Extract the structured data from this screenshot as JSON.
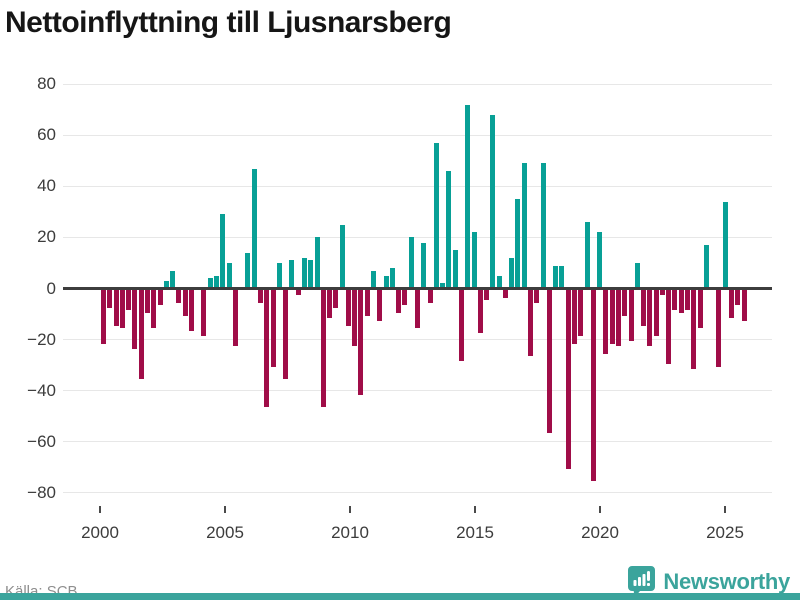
{
  "title": "Nettoinflyttning till Ljusnarsberg",
  "source": "Källa: SCB",
  "brand": "Newsworthy",
  "colors": {
    "positive": "#08a096",
    "negative": "#a00d48",
    "brand_teal": "#3ba49c",
    "grid": "#e7e7e7",
    "zero_axis": "#3d3d3d",
    "axis_text": "#3c3c3c",
    "source_text": "#8e8e8e",
    "title_text": "#161616"
  },
  "chart_data": {
    "type": "bar",
    "title": "Nettoinflyttning till Ljusnarsberg",
    "frequency": "quarterly",
    "start_quarter": "2000 Q1",
    "end_quarter": "2025 Q3",
    "ylim": [
      -80,
      80
    ],
    "grid": "horizontal",
    "y_ticks": [
      80,
      60,
      40,
      20,
      0,
      -20,
      -40,
      -60,
      -80
    ],
    "x_tick_years": [
      2000,
      2005,
      2010,
      2015,
      2020,
      2025
    ],
    "values": [
      -21,
      -7,
      -14,
      -15,
      -8,
      -23,
      -35,
      -9,
      -15,
      -6,
      3,
      7,
      -5,
      -10,
      -16,
      0,
      -18,
      4,
      5,
      29,
      10,
      -22,
      0,
      14,
      47,
      -5,
      -46,
      -30,
      10,
      -35,
      11,
      -2,
      12,
      11,
      20,
      -46,
      -11,
      -7,
      25,
      -14,
      -22,
      -41,
      -10,
      7,
      -12,
      5,
      8,
      -9,
      -6,
      20,
      -15,
      18,
      -5,
      57,
      2,
      46,
      15,
      -28,
      72,
      22,
      -17,
      -4,
      68,
      5,
      -3,
      12,
      35,
      49,
      -26,
      -5,
      49,
      -56,
      9,
      9,
      -70,
      -21,
      -18,
      26,
      -75,
      22,
      -25,
      -21,
      -22,
      -10,
      -20,
      10,
      -14,
      -22,
      -18,
      -2,
      -29,
      -8,
      -9,
      -8,
      -31,
      -15,
      17,
      0,
      -30,
      34,
      -11,
      -6,
      -12
    ]
  }
}
